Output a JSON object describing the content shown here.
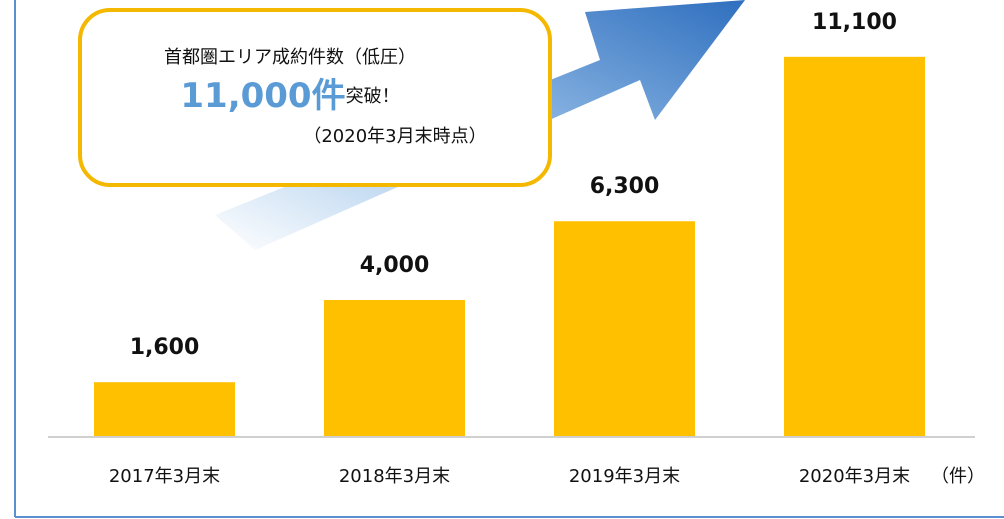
{
  "chart_data": {
    "type": "bar",
    "categories": [
      "2017年3月末",
      "2018年3月末",
      "2019年3月末",
      "2020年3月末"
    ],
    "values": [
      1600,
      4000,
      6300,
      11100
    ],
    "value_labels": [
      "1,600",
      "4,000",
      "6,300",
      "11,100"
    ],
    "color": "#ffc000",
    "ylim": [
      0,
      12000
    ],
    "unit_label": "（件）",
    "annotation": {
      "line1": "首都圏エリア成約件数（低圧）",
      "highlight": "11,000件",
      "highlight_suffix": "突破！",
      "line3": "（2020年3月末時点）"
    }
  }
}
